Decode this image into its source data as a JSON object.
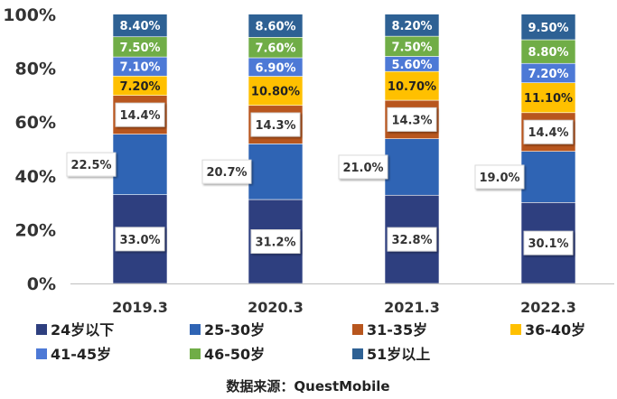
{
  "chart_data": {
    "type": "bar",
    "stacked": true,
    "categories": [
      "2019.3",
      "2020.3",
      "2021.3",
      "2022.3"
    ],
    "series": [
      {
        "name": "24岁以下",
        "color": "#2e3f7f",
        "values": [
          33.0,
          31.2,
          32.8,
          30.1
        ],
        "labels": [
          "33.0%",
          "31.2%",
          "32.8%",
          "30.1%"
        ]
      },
      {
        "name": "25-30岁",
        "color": "#2f64b4",
        "values": [
          22.5,
          20.7,
          21.0,
          19.0
        ],
        "labels": [
          "22.5%",
          "20.7%",
          "21.0%",
          "19.0%"
        ]
      },
      {
        "name": "31-35岁",
        "color": "#b8561e",
        "values": [
          14.4,
          14.3,
          14.3,
          14.4
        ],
        "labels": [
          "14.4%",
          "14.3%",
          "14.3%",
          "14.4%"
        ]
      },
      {
        "name": "36-40岁",
        "color": "#ffc000",
        "values": [
          7.2,
          10.8,
          10.7,
          11.1
        ],
        "labels": [
          "7.20%",
          "10.80%",
          "10.70%",
          "11.10%"
        ]
      },
      {
        "name": "41-45岁",
        "color": "#4d79d6",
        "values": [
          7.1,
          6.9,
          5.6,
          7.2
        ],
        "labels": [
          "7.10%",
          "6.90%",
          "5.60%",
          "7.20%"
        ]
      },
      {
        "name": "46-50岁",
        "color": "#70ad47",
        "values": [
          7.5,
          7.6,
          7.5,
          8.8
        ],
        "labels": [
          "7.50%",
          "7.60%",
          "7.50%",
          "8.80%"
        ]
      },
      {
        "name": "51岁以上",
        "color": "#2e6194",
        "values": [
          8.4,
          8.6,
          8.2,
          9.5
        ],
        "labels": [
          "8.40%",
          "8.60%",
          "8.20%",
          "9.50%"
        ]
      }
    ],
    "yticks": [
      "0%",
      "20%",
      "40%",
      "60%",
      "80%",
      "100%"
    ],
    "ylim": [
      0,
      100
    ],
    "legend": "bottom",
    "source": "数据来源：QuestMobile"
  }
}
